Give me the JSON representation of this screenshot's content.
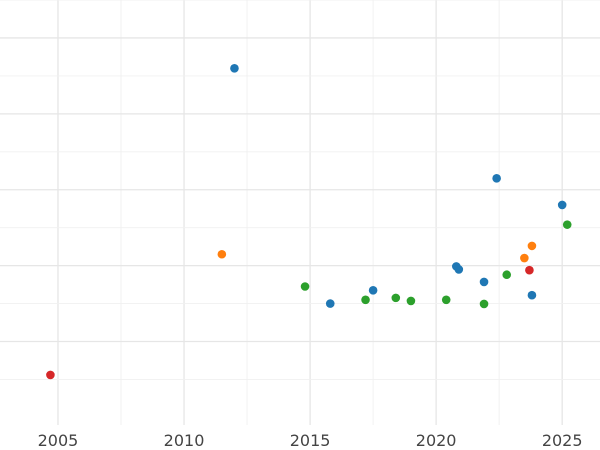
{
  "chart_data": {
    "type": "scatter",
    "title": "",
    "xlabel": "",
    "ylabel": "",
    "grid": true,
    "legend": "none",
    "xlim": [
      2002.7,
      2026.5
    ],
    "ylim": [
      -0.12,
      1.0
    ],
    "x_ticks": [
      "2005",
      "2010",
      "2015",
      "2020",
      "2025"
    ],
    "series": [
      {
        "color": "#1f77b4",
        "points": [
          {
            "x": 2012.0,
            "y": 0.82
          },
          {
            "x": 2015.8,
            "y": 0.2
          },
          {
            "x": 2017.5,
            "y": 0.235
          },
          {
            "x": 2020.8,
            "y": 0.298
          },
          {
            "x": 2020.9,
            "y": 0.29
          },
          {
            "x": 2021.9,
            "y": 0.257
          },
          {
            "x": 2022.4,
            "y": 0.53
          },
          {
            "x": 2023.8,
            "y": 0.222
          },
          {
            "x": 2025.0,
            "y": 0.46
          }
        ]
      },
      {
        "color": "#ff7f0e",
        "points": [
          {
            "x": 2011.5,
            "y": 0.33
          },
          {
            "x": 2023.5,
            "y": 0.32
          },
          {
            "x": 2023.8,
            "y": 0.352
          }
        ]
      },
      {
        "color": "#2ca02c",
        "points": [
          {
            "x": 2014.8,
            "y": 0.245
          },
          {
            "x": 2017.2,
            "y": 0.21
          },
          {
            "x": 2018.4,
            "y": 0.215
          },
          {
            "x": 2019.0,
            "y": 0.207
          },
          {
            "x": 2020.4,
            "y": 0.21
          },
          {
            "x": 2021.9,
            "y": 0.199
          },
          {
            "x": 2022.8,
            "y": 0.276
          },
          {
            "x": 2025.2,
            "y": 0.408
          }
        ]
      },
      {
        "color": "#d62728",
        "points": [
          {
            "x": 2004.7,
            "y": 0.012
          },
          {
            "x": 2023.7,
            "y": 0.288
          }
        ]
      }
    ]
  }
}
